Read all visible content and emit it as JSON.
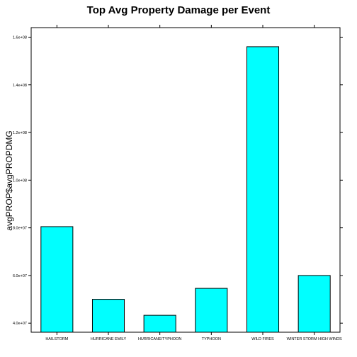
{
  "chart_data": {
    "type": "bar",
    "title": "Top Avg Property Damage per Event",
    "xlabel": "",
    "ylabel": "avgPROP$avgPROPDMG",
    "categories": [
      "HAILSTORM",
      "HURRICANE EMILY",
      "HURRICANE/TYPHOON",
      "TYPHOON",
      "WILD FIRES",
      "WINTER STORM HIGH WINDS"
    ],
    "values": [
      80500000,
      50000000,
      43300000,
      54600000,
      156000000,
      60000000
    ],
    "ylim": [
      36200000,
      164000000
    ],
    "yticks": [
      40000000,
      60000000,
      80000000,
      100000000,
      120000000,
      140000000,
      160000000
    ],
    "ytick_labels": [
      "4.0e+07",
      "6.0e+07",
      "8.0e+07",
      "1.0e+08",
      "1.2e+08",
      "1.4e+08",
      "1.6e+08"
    ],
    "grid": false,
    "legend": "none",
    "bar_color": "#00FFFF",
    "bar_outline": "#000000"
  }
}
